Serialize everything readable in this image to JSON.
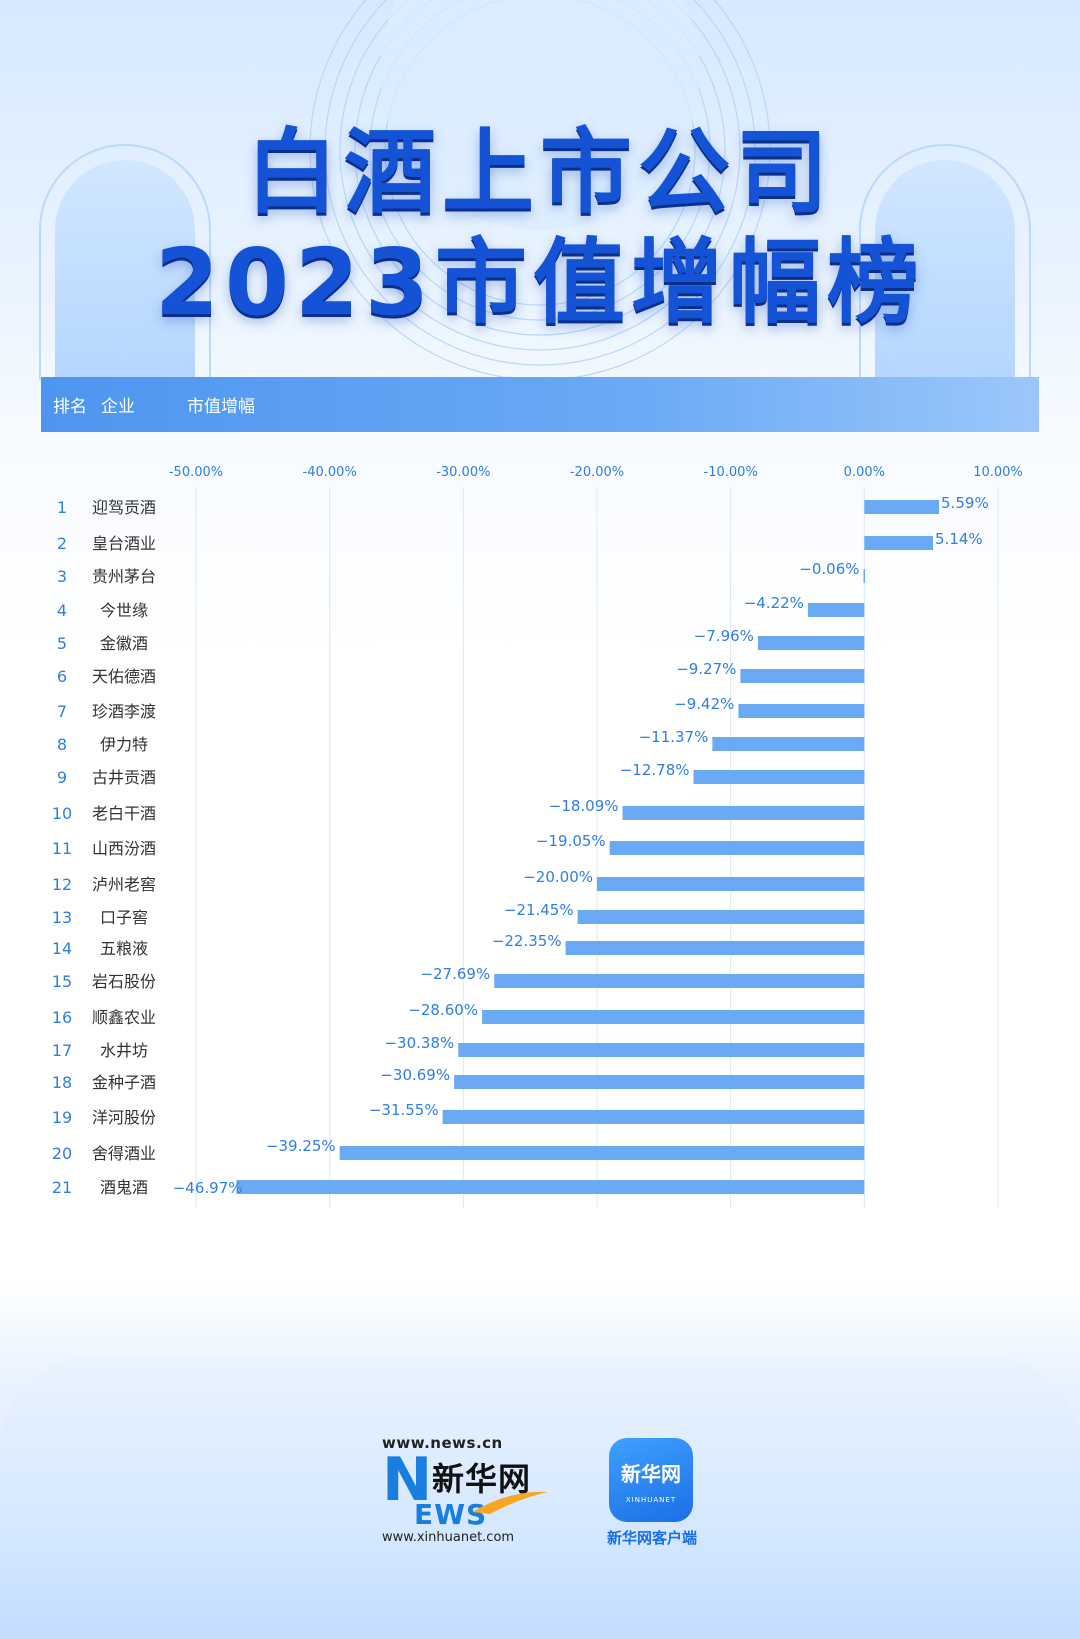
{
  "title_line1": "白酒上市公司",
  "title_line2": "2023市值增幅榜",
  "header": {
    "rank_label": "排名",
    "company_label": "企业",
    "growth_label": "市值增幅"
  },
  "colors": {
    "bar": "#6aaaf5",
    "text_blue": "#2f7fe0",
    "title_blue": "#1553d6"
  },
  "chart_data": {
    "type": "bar",
    "orientation": "horizontal",
    "xlim": [
      -50,
      10
    ],
    "x_ticks": [
      "-50.00%",
      "-40.00%",
      "-30.00%",
      "-20.00%",
      "-10.00%",
      "0.00%",
      "10.00%"
    ],
    "categories": [
      "迎驾贡酒",
      "皇台酒业",
      "贵州茅台",
      "今世缘",
      "金徽酒",
      "天佑德酒",
      "珍酒李渡",
      "伊力特",
      "古井贡酒",
      "老白干酒",
      "山西汾酒",
      "泸州老窖",
      "口子窖",
      "五粮液",
      "岩石股份",
      "顺鑫农业",
      "水井坊",
      "金种子酒",
      "洋河股份",
      "舍得酒业",
      "酒鬼酒"
    ],
    "ranks": [
      "1",
      "2",
      "3",
      "4",
      "5",
      "6",
      "7",
      "8",
      "9",
      "10",
      "11",
      "12",
      "13",
      "14",
      "15",
      "16",
      "17",
      "18",
      "19",
      "20",
      "21"
    ],
    "values": [
      5.59,
      5.14,
      -0.06,
      -4.22,
      -7.96,
      -9.27,
      -9.42,
      -11.37,
      -12.78,
      -18.09,
      -19.05,
      -20.0,
      -21.45,
      -22.35,
      -27.69,
      -28.6,
      -30.38,
      -30.69,
      -31.55,
      -39.25,
      -46.97
    ],
    "labels": [
      "5.59%",
      "5.14%",
      "−0.06%",
      "−4.22%",
      "−7.96%",
      "−9.27%",
      "−9.42%",
      "−11.37%",
      "−12.78%",
      "−18.09%",
      "−19.05%",
      "−20.00%",
      "−21.45%",
      "−22.35%",
      "−27.69%",
      "−28.60%",
      "−30.38%",
      "−30.69%",
      "−31.55%",
      "−39.25%",
      "−46.97%"
    ],
    "grid": true
  },
  "footer": {
    "url_top": "www.news.cn",
    "brand_cn": "新华网",
    "brand_n": "N",
    "brand_ews": "EWS",
    "url_bottom": "www.xinhuanet.com",
    "app_icon_text": "新华网",
    "app_icon_sub": "XINHUANET",
    "app_name": "新华网客户端"
  }
}
